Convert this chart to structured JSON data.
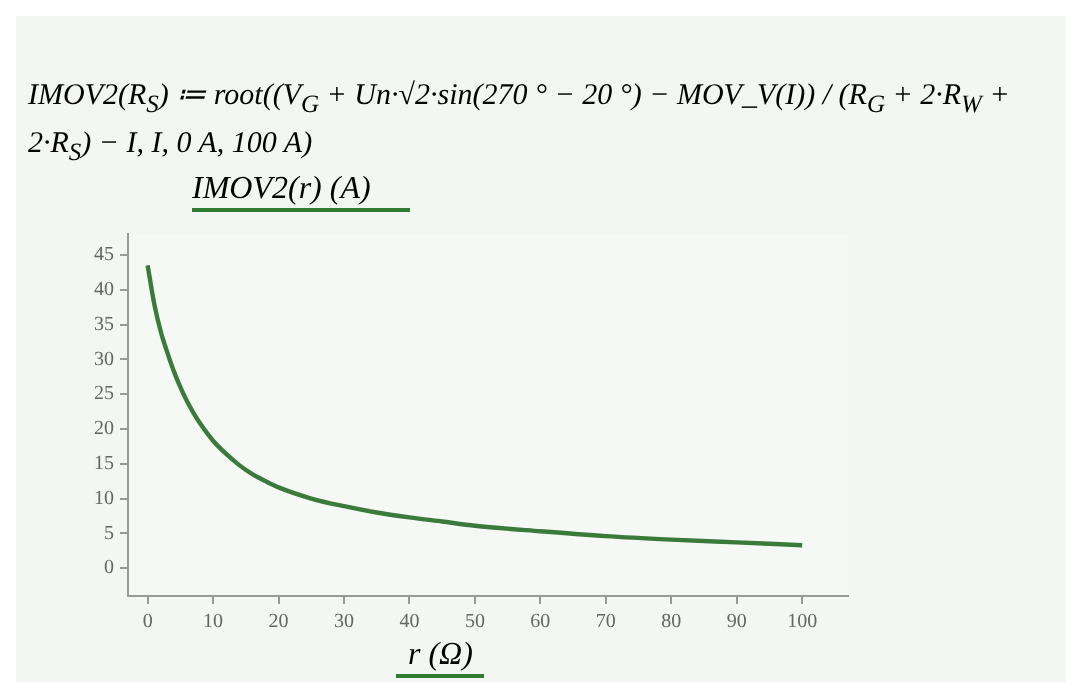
{
  "chart_data": {
    "type": "line",
    "title": "IMOV2(R$_{S}$) ≔ root((V$_{G}$ + Un·√2·sin(270 ° − 20 °) − MOV_V(I)) / (R$_{G}$ + 2·R$_{W}$ + 2·R$_{S}$) − I, I, 0 A, 100 A)",
    "ylabel": "IMOV2(r)  (A)",
    "xlabel": "r  (Ω)",
    "x": [
      0,
      1,
      2,
      3,
      4,
      5,
      6,
      7,
      8,
      10,
      12,
      14,
      16,
      18,
      20,
      25,
      30,
      35,
      40,
      45,
      50,
      60,
      70,
      80,
      90,
      100
    ],
    "series": [
      {
        "color": "#3a7a3a",
        "values": [
          43.5,
          38,
          34,
          31,
          28.3,
          26,
          24,
          22.3,
          20.8,
          18.3,
          16.4,
          14.8,
          13.5,
          12.5,
          11.6,
          10,
          8.9,
          8,
          7.3,
          6.7,
          6.1,
          5.3,
          4.6,
          4.1,
          3.7,
          3.3
        ]
      }
    ],
    "xlim": [
      -3,
      107
    ],
    "ylim": [
      -4,
      48
    ],
    "xticks": [
      0,
      10,
      20,
      30,
      40,
      50,
      60,
      70,
      80,
      90,
      100
    ],
    "yticks": [
      0,
      5,
      10,
      15,
      20,
      25,
      30,
      35,
      40,
      45
    ],
    "grid": false,
    "legend": false,
    "marker": "none",
    "line_style": "solid"
  }
}
